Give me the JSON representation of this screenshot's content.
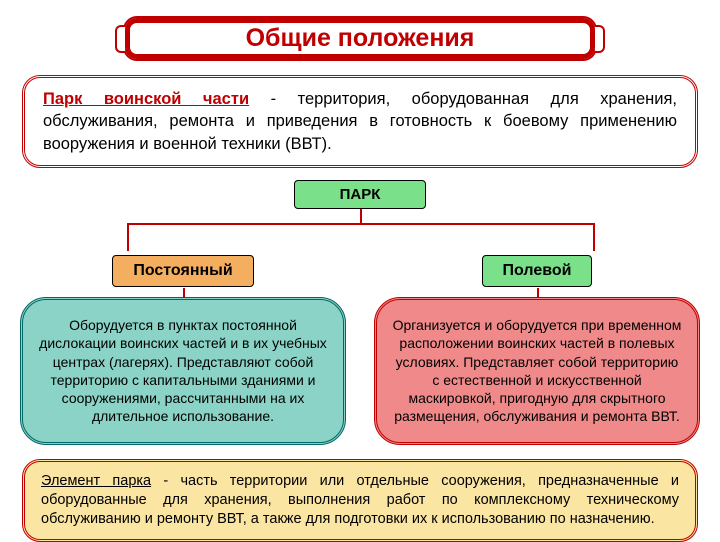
{
  "title": "Общие положения",
  "definition": {
    "start": "Парк воинской части",
    "rest": " - территория, оборудованная для хранения, обслуживания, ремонта и приведения в готовность к боевому применению вооружения и военной техники (ВВТ)."
  },
  "root_label": "ПАРК",
  "root_bg": "#7be08a",
  "tree": {
    "line_color": "#c00000",
    "left_pct": 16,
    "right_pct": 84
  },
  "branches": [
    {
      "tag": "Постоянный",
      "tag_bg": "#f4ae60",
      "text": "Оборудуется в пунктах постоянной дислокации воинских частей и в их учебных центрах (лагерях). Представляют собой территорию с капитальными зданиями и сооружениями, рассчитанными на их длительное использование.",
      "bg": "#8bd3c7",
      "border": "#006666"
    },
    {
      "tag": "Полевой",
      "tag_bg": "#7be08a",
      "text": "Организуется и оборудуется при временном расположении воинских частей в полевых условиях.  Представляет собой территорию с естественной и искусственной маскировкой, пригодную для скрытного размещения, обслуживания и ремонта ВВТ.",
      "bg": "#f08a8a",
      "border": "#c00000"
    }
  ],
  "footer": {
    "start": "Элемент парка",
    "rest": " - часть территории или отдельные сооружения, предназначенные и оборудованные для хранения, выполнения работ по комплексному техническому обслуживанию и ремонту ВВТ, а также для подготовки их к использованию по назначению."
  },
  "footer_bg": "#fbe5a3"
}
